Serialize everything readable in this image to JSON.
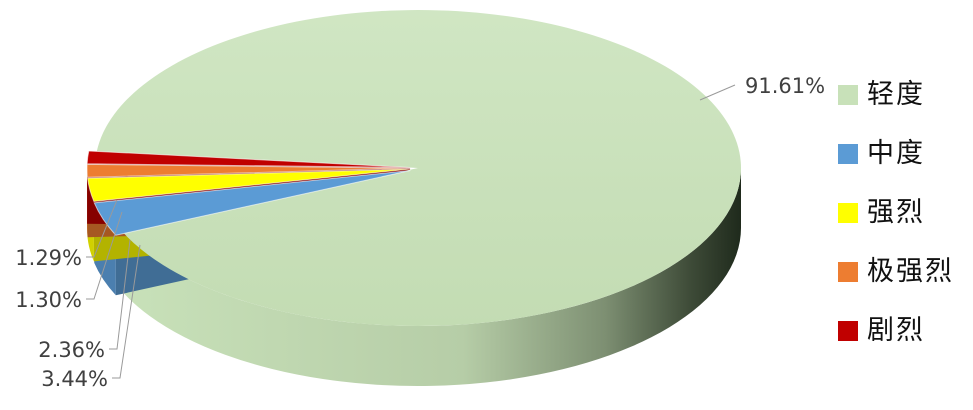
{
  "chart_data": {
    "type": "pie",
    "title": "",
    "series": [
      {
        "name": "轻度",
        "value": 91.61,
        "label": "91.61%",
        "color": "#c8e1b9"
      },
      {
        "name": "中度",
        "value": 3.44,
        "label": "3.44%",
        "color": "#5b9bd5"
      },
      {
        "name": "强烈",
        "value": 2.36,
        "label": "2.36%",
        "color": "#ffff00"
      },
      {
        "name": "极强烈",
        "value": 1.3,
        "label": "1.30%",
        "color": "#ed7d31"
      },
      {
        "name": "剧烈",
        "value": 1.29,
        "label": "1.29%",
        "color": "#c00000"
      }
    ],
    "legend_position": "right",
    "style": "3d-exploded"
  }
}
